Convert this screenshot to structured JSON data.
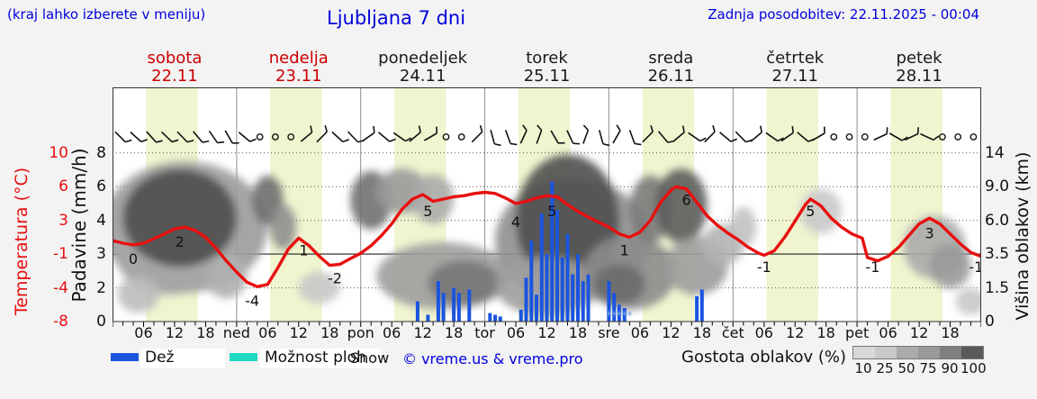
{
  "header": {
    "hint": "(kraj lahko izberete v meniju)",
    "title": "Ljubljana 7 dni",
    "updated": "Zadnja posodobitev: 22.11.2025 - 00:04"
  },
  "days": [
    {
      "name": "sobota",
      "date": "22.11",
      "highlight": true,
      "icons": [
        "cloud-2",
        "cloud-2",
        "cloud-2",
        "cloud-2"
      ]
    },
    {
      "name": "nedelja",
      "date": "23.11",
      "highlight": true,
      "icons": [
        "moon-cloud",
        "sun-cloud",
        "sun-cloud",
        "moon-cloud"
      ]
    },
    {
      "name": "ponedeljek",
      "date": "24.11",
      "highlight": false,
      "icons": [
        "moon-cloud",
        "sun-cloud-rain",
        "cloud-rain",
        "moon-cloud-rain"
      ]
    },
    {
      "name": "torek",
      "date": "25.11",
      "highlight": false,
      "icons": [
        "cloud-rain",
        "cloud-rain-heavy",
        "cloud-rain-heavy",
        "cloud-rain"
      ]
    },
    {
      "name": "sreda",
      "date": "26.11",
      "highlight": false,
      "icons": [
        "cloud-snow",
        "cloud-2",
        "cloud-rain",
        "cloud-2"
      ]
    },
    {
      "name": "četrtek",
      "date": "27.11",
      "highlight": false,
      "icons": [
        "moon-cloud",
        "sun-cloud",
        "sun",
        "moon-cloud-small"
      ]
    },
    {
      "name": "petek",
      "date": "28.11",
      "highlight": false,
      "icons": [
        "moon-cloud-small",
        "sun-cloud-small",
        "sun-cloud",
        "moon-cloud"
      ]
    }
  ],
  "axes": {
    "temp_title": "Temperatura (°C)",
    "temp_ticks": [
      "10",
      "6",
      "3",
      "-1",
      "-4",
      "-8"
    ],
    "precip_title": "Padavine (mm/h)",
    "precip_ticks": [
      "8",
      "6",
      "4",
      "3",
      "2",
      "0"
    ],
    "cloud_title": "Višina oblakov (km)",
    "cloud_ticks": [
      "14",
      "9.0",
      "6.0",
      "3.5",
      "1.5",
      "0"
    ],
    "time_labels": [
      "06",
      "12",
      "18"
    ],
    "day_abbr": [
      "ned",
      "pon",
      "tor",
      "sre",
      "čet",
      "pet"
    ]
  },
  "legend": {
    "rain": "Dež",
    "showers": "Možnost ploh",
    "snow": "Snow",
    "copyright": "© vreme.us & vreme.pro",
    "cloud_density": "Gostota oblakov (%)",
    "density_values": [
      "10",
      "25",
      "50",
      "75",
      "90",
      "100"
    ],
    "density_colors": [
      "#d9d9d9",
      "#c9c9c9",
      "#ababab",
      "#999999",
      "#7f7f7f",
      "#595959"
    ]
  },
  "colors": {
    "link_blue": "#0000dd",
    "day_red": "#cc0000",
    "temp_line": "#e80f0f",
    "rain_bar": "#1a55e0",
    "shower": "#1fd8c4",
    "day_band": "#f0f4cf",
    "plot_bg": "#ffffff",
    "page_bg": "#f3f3f3"
  },
  "chart_data": {
    "type": "line",
    "subtype": "meteogram",
    "x_hours_range": [
      0,
      168
    ],
    "x_origin_label": "sobota 22.11 00:00",
    "daylight_band_hours": [
      6.5,
      16.5
    ],
    "temp_scale": [
      -8,
      -4,
      -1,
      3,
      6,
      10
    ],
    "precip_scale": [
      0,
      2,
      3,
      4,
      6,
      8
    ],
    "cloud_height_scale_km": [
      0,
      1.5,
      3.5,
      6,
      9,
      14
    ],
    "temperature": {
      "name": "Temperatura",
      "unit": "°C",
      "color": "#e80f0f",
      "points": [
        [
          0,
          0.6
        ],
        [
          2,
          0.3
        ],
        [
          4,
          0.1
        ],
        [
          6,
          0.3
        ],
        [
          9,
          1.1
        ],
        [
          12,
          2.0
        ],
        [
          14,
          2.2
        ],
        [
          16,
          1.8
        ],
        [
          18,
          1.0
        ],
        [
          20,
          -0.3
        ],
        [
          22,
          -1.6
        ],
        [
          24,
          -2.6
        ],
        [
          26,
          -3.5
        ],
        [
          28,
          -3.9
        ],
        [
          30,
          -3.7
        ],
        [
          32,
          -2.2
        ],
        [
          34,
          -0.4
        ],
        [
          36,
          0.9
        ],
        [
          38,
          0.0
        ],
        [
          40,
          -1.2
        ],
        [
          42,
          -2.0
        ],
        [
          44,
          -1.9
        ],
        [
          46,
          -1.4
        ],
        [
          48,
          -0.9
        ],
        [
          50,
          0.0
        ],
        [
          52,
          1.2
        ],
        [
          54,
          2.6
        ],
        [
          56,
          4.0
        ],
        [
          58,
          4.9
        ],
        [
          60,
          5.3
        ],
        [
          62,
          4.7
        ],
        [
          64,
          4.9
        ],
        [
          66,
          5.1
        ],
        [
          68,
          5.2
        ],
        [
          70,
          5.4
        ],
        [
          72,
          5.5
        ],
        [
          74,
          5.4
        ],
        [
          76,
          5.0
        ],
        [
          78,
          4.5
        ],
        [
          80,
          4.7
        ],
        [
          82,
          5.0
        ],
        [
          84,
          5.2
        ],
        [
          86,
          5.1
        ],
        [
          88,
          4.4
        ],
        [
          90,
          3.8
        ],
        [
          92,
          3.3
        ],
        [
          94,
          2.8
        ],
        [
          96,
          2.2
        ],
        [
          98,
          1.4
        ],
        [
          100,
          1.0
        ],
        [
          102,
          1.6
        ],
        [
          104,
          3.0
        ],
        [
          106,
          4.6
        ],
        [
          108,
          5.7
        ],
        [
          109,
          6.0
        ],
        [
          111,
          5.8
        ],
        [
          113,
          4.6
        ],
        [
          115,
          3.4
        ],
        [
          117,
          2.4
        ],
        [
          119,
          1.5
        ],
        [
          121,
          0.7
        ],
        [
          123,
          -0.2
        ],
        [
          125,
          -0.9
        ],
        [
          126,
          -1.1
        ],
        [
          128,
          -0.6
        ],
        [
          130,
          1.0
        ],
        [
          132,
          2.9
        ],
        [
          134,
          4.4
        ],
        [
          135,
          4.9
        ],
        [
          137,
          4.3
        ],
        [
          139,
          3.2
        ],
        [
          141,
          2.2
        ],
        [
          143,
          1.4
        ],
        [
          145,
          0.9
        ],
        [
          146,
          -1.3
        ],
        [
          148,
          -1.6
        ],
        [
          150,
          -1.2
        ],
        [
          152,
          -0.2
        ],
        [
          154,
          1.2
        ],
        [
          156,
          2.6
        ],
        [
          158,
          3.2
        ],
        [
          160,
          2.6
        ],
        [
          162,
          1.4
        ],
        [
          164,
          0.2
        ],
        [
          166,
          -0.8
        ],
        [
          168,
          -1.2
        ]
      ],
      "point_labels": [
        [
          4,
          "0"
        ],
        [
          13,
          "2"
        ],
        [
          27,
          "-4"
        ],
        [
          37,
          "1"
        ],
        [
          43,
          "-2"
        ],
        [
          61,
          "5"
        ],
        [
          78,
          "4"
        ],
        [
          85,
          "5"
        ],
        [
          99,
          "1"
        ],
        [
          111,
          "6"
        ],
        [
          126,
          "-1"
        ],
        [
          135,
          "5"
        ],
        [
          147,
          "-1"
        ],
        [
          158,
          "3"
        ],
        [
          167,
          "-1"
        ]
      ]
    },
    "precipitation": {
      "name": "Dež",
      "unit": "mm/h",
      "color": "#1a55e0",
      "bars": [
        [
          59,
          1.2
        ],
        [
          61,
          0.4
        ],
        [
          63,
          2.2
        ],
        [
          64,
          1.7
        ],
        [
          66,
          2.0
        ],
        [
          67,
          1.7
        ],
        [
          69,
          1.9
        ],
        [
          73,
          0.5
        ],
        [
          74,
          0.4
        ],
        [
          75,
          0.3
        ],
        [
          79,
          0.7
        ],
        [
          80,
          2.3
        ],
        [
          81,
          3.4
        ],
        [
          82,
          1.6
        ],
        [
          83,
          4.4
        ],
        [
          84,
          3.0
        ],
        [
          85,
          6.3
        ],
        [
          86,
          4.6
        ],
        [
          87,
          2.9
        ],
        [
          88,
          3.6
        ],
        [
          89,
          2.4
        ],
        [
          90,
          3.0
        ],
        [
          91,
          2.2
        ],
        [
          92,
          2.4
        ],
        [
          96,
          2.2
        ],
        [
          97,
          1.7
        ],
        [
          98,
          1.0
        ],
        [
          99,
          0.8
        ],
        [
          113,
          1.5
        ],
        [
          114,
          1.9
        ]
      ],
      "snow_mark_hours": [
        96,
        97,
        98,
        99,
        100
      ]
    },
    "wind_barbs_every_3h": [
      45,
      42,
      48,
      44,
      46,
      50,
      55,
      60,
      40,
      0,
      0,
      0,
      -40,
      -45,
      42,
      46,
      -35,
      40,
      35,
      -40,
      -30,
      0,
      0,
      -45,
      75,
      70,
      -65,
      -70,
      60,
      65,
      -70,
      75,
      -60,
      70,
      -45,
      50,
      -40,
      35,
      -45,
      40,
      45,
      -40,
      35,
      -35,
      40,
      -30,
      0,
      0,
      0,
      -25,
      30,
      -25,
      25,
      0,
      0,
      0
    ],
    "cloud_blobs": [
      [
        14,
        5.5,
        16,
        3.4,
        "#9b9b9b"
      ],
      [
        11,
        3.2,
        10,
        1.6,
        "#a6a6a6"
      ],
      [
        5,
        1.2,
        4,
        0.8,
        "#bdbdbd"
      ],
      [
        22,
        2.2,
        4,
        1.0,
        "#b0b0b0"
      ],
      [
        13,
        6.2,
        11,
        2.4,
        "#4f4f4f"
      ],
      [
        30,
        7.8,
        3,
        1.1,
        "#6f6f6f"
      ],
      [
        33,
        5.5,
        2.5,
        1.0,
        "#8f8f8f"
      ],
      [
        40,
        1.5,
        4,
        0.7,
        "#c8c8c8"
      ],
      [
        50,
        7.8,
        4,
        1.3,
        "#707070"
      ],
      [
        56,
        8.6,
        5,
        1.0,
        "#9a9a9a"
      ],
      [
        62,
        7.9,
        4,
        1.1,
        "#ababab"
      ],
      [
        64,
        2.2,
        13,
        1.5,
        "#9e9e9e"
      ],
      [
        68,
        1.8,
        7,
        1.0,
        "#787878"
      ],
      [
        89,
        4.5,
        15,
        3.2,
        "#8f8f8f"
      ],
      [
        88,
        6.0,
        10,
        3.4,
        "#4f4f4f"
      ],
      [
        84,
        1.6,
        10,
        1.3,
        "#9e9e9e"
      ],
      [
        100,
        2.4,
        9,
        1.7,
        "#8c8c8c"
      ],
      [
        98,
        1.7,
        5,
        0.9,
        "#6a6a6a"
      ],
      [
        104,
        7.0,
        4,
        1.5,
        "#7a7a7a"
      ],
      [
        110,
        7.3,
        5,
        1.7,
        "#5c5c5c"
      ],
      [
        113,
        2.8,
        6,
        1.3,
        "#9c9c9c"
      ],
      [
        118,
        4.2,
        4,
        0.9,
        "#b4b4b4"
      ],
      [
        122,
        5.5,
        2.5,
        0.9,
        "#c2c2c2"
      ],
      [
        137,
        6.8,
        4,
        1.0,
        "#cacaca"
      ],
      [
        159,
        4.0,
        6,
        1.4,
        "#aaaaaa"
      ],
      [
        162,
        2.8,
        4,
        1.0,
        "#9a9a9a"
      ],
      [
        166,
        0.9,
        3,
        0.6,
        "#c8c8c8"
      ]
    ]
  }
}
